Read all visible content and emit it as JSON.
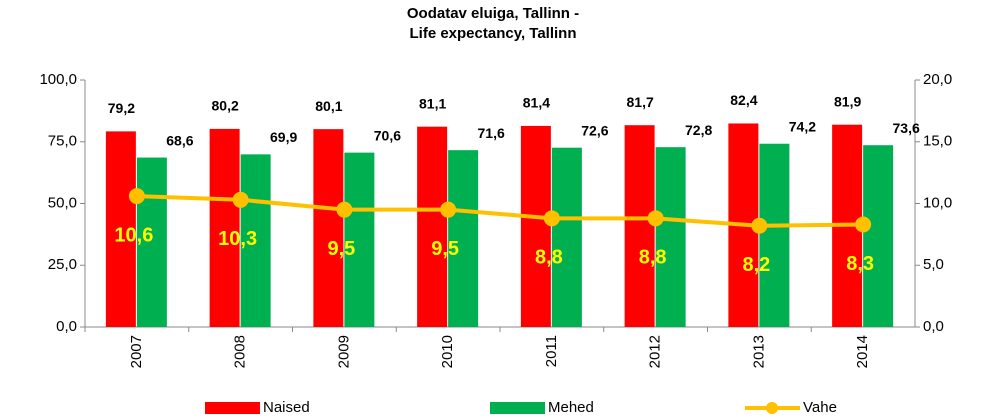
{
  "chart_data": {
    "type": "bar_line",
    "title": [
      "Oodatav eluiga, Tallinn -",
      "Life expectancy, Tallinn"
    ],
    "categories": [
      "2007",
      "2008",
      "2009",
      "2010",
      "2011",
      "2012",
      "2013",
      "2014"
    ],
    "series": [
      {
        "name": "Naised",
        "color": "#ff0000",
        "type": "bar",
        "values": [
          79.2,
          80.2,
          80.1,
          81.1,
          81.4,
          81.7,
          82.4,
          81.9
        ],
        "value_labels": [
          "79,2",
          "80,2",
          "80,1",
          "81,1",
          "81,4",
          "81,7",
          "82,4",
          "81,9"
        ]
      },
      {
        "name": "Mehed",
        "color": "#00b050",
        "type": "bar",
        "values": [
          68.6,
          69.9,
          70.6,
          71.6,
          72.6,
          72.8,
          74.2,
          73.6
        ],
        "value_labels": [
          "68,6",
          "69,9",
          "70,6",
          "71,6",
          "72,6",
          "72,8",
          "74,2",
          "73,6"
        ]
      },
      {
        "name": "Vahe",
        "color": "#ffc000",
        "type": "line",
        "axis": "y2",
        "values": [
          10.6,
          10.3,
          9.5,
          9.5,
          8.8,
          8.8,
          8.2,
          8.3
        ],
        "value_labels": [
          "10,6",
          "10,3",
          "9,5",
          "9,5",
          "8,8",
          "8,8",
          "8,2",
          "8,3"
        ],
        "label_color": "#ffff00"
      }
    ],
    "ylim": [
      0,
      100
    ],
    "yticks": [
      {
        "value": 0,
        "label": "0,0"
      },
      {
        "value": 25,
        "label": "25,0"
      },
      {
        "value": 50,
        "label": "50,0"
      },
      {
        "value": 75,
        "label": "75,0"
      },
      {
        "value": 100,
        "label": "100,0"
      }
    ],
    "y2lim": [
      0,
      20
    ],
    "y2ticks": [
      {
        "value": 0,
        "label": "0,0"
      },
      {
        "value": 5,
        "label": "5,0"
      },
      {
        "value": 10,
        "label": "10,0"
      },
      {
        "value": 15,
        "label": "15,0"
      },
      {
        "value": 20,
        "label": "20,0"
      }
    ],
    "grid": false,
    "legend": "bottom"
  }
}
